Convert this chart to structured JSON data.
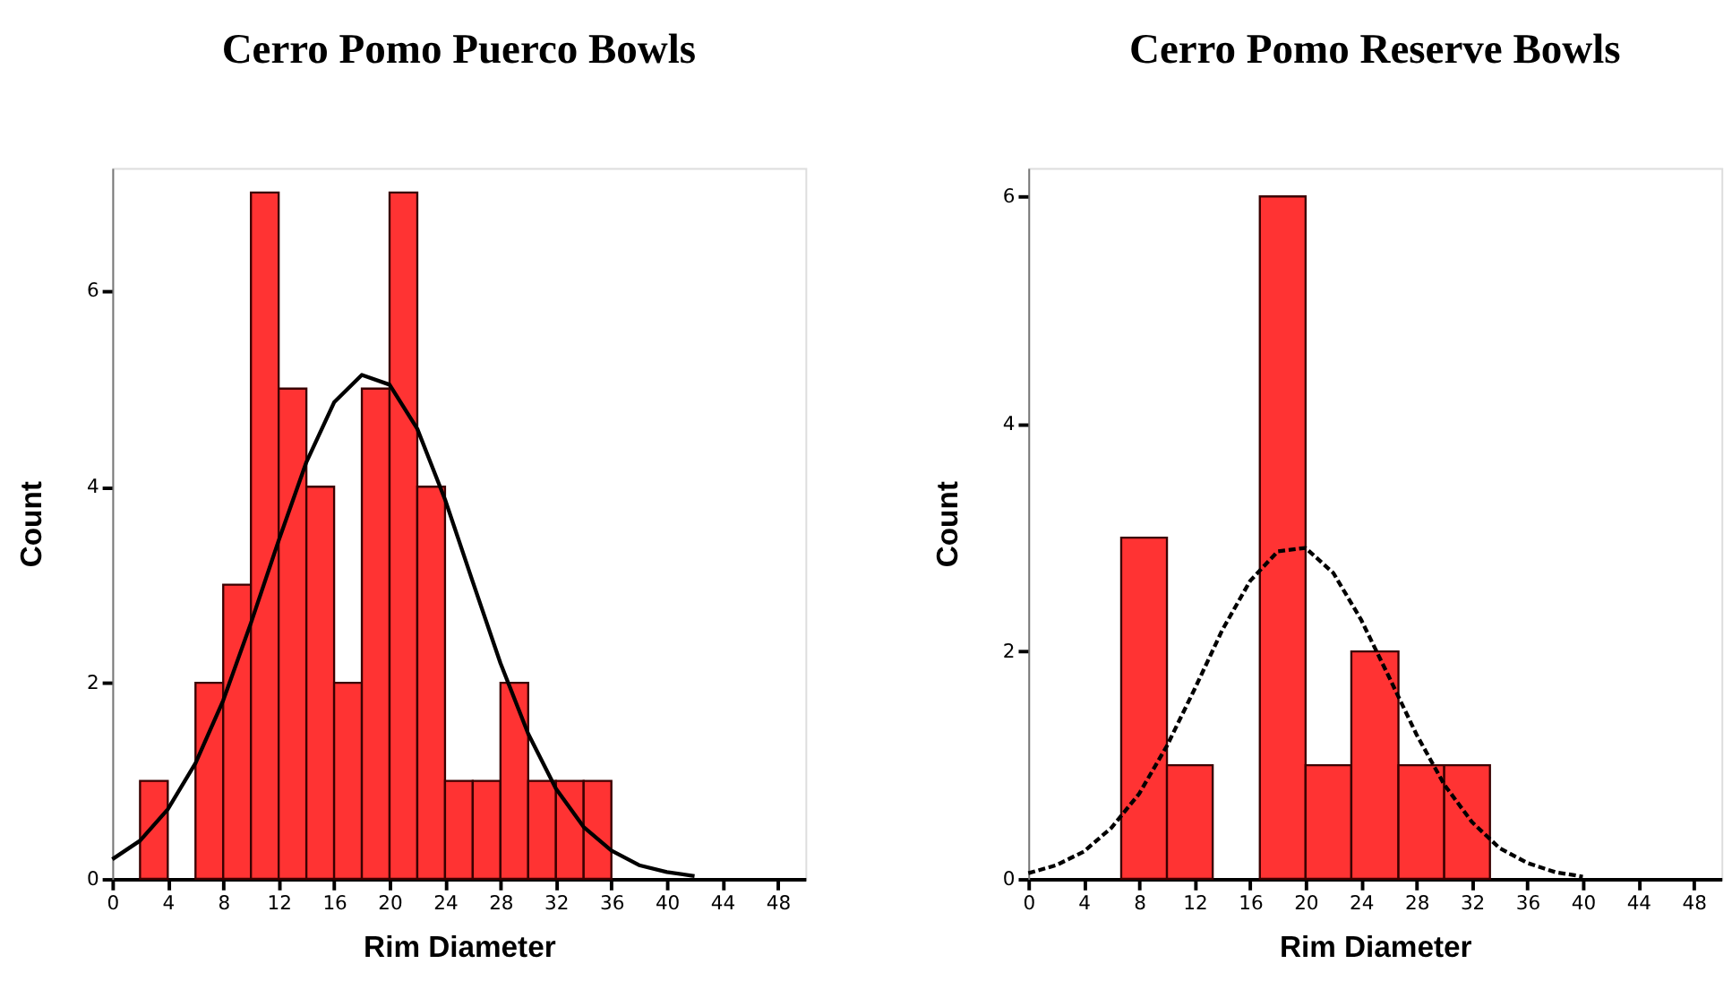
{
  "chart_data": [
    {
      "type": "histogram",
      "title": "Cerro Pomo Puerco Bowls",
      "xlabel": "Rim Diameter",
      "ylabel": "Count",
      "color": "#ff3333",
      "bins": [
        2,
        4,
        6,
        8,
        10,
        12,
        14,
        16,
        18,
        20,
        22,
        24,
        26,
        28,
        30,
        32,
        34,
        36
      ],
      "values": [
        1,
        0,
        2,
        3,
        7,
        5,
        4,
        2,
        5,
        7,
        4,
        1,
        1,
        2,
        1,
        1,
        1
      ],
      "series": [
        {
          "type": "line",
          "color": "#000000",
          "line_style": "solid",
          "x": [
            0,
            2,
            4,
            6,
            8,
            10,
            12,
            14,
            16,
            18,
            20,
            22,
            24,
            26,
            28,
            30,
            32,
            34,
            36,
            38,
            40,
            42
          ],
          "values": [
            0.2,
            0.39,
            0.71,
            1.18,
            1.82,
            2.61,
            3.45,
            4.25,
            4.86,
            5.14,
            5.04,
            4.59,
            3.87,
            3.03,
            2.2,
            1.48,
            0.92,
            0.53,
            0.29,
            0.14,
            0.07,
            0.03
          ]
        }
      ],
      "xlim": [
        0,
        50
      ],
      "xticks": [
        0,
        4,
        8,
        12,
        16,
        20,
        24,
        28,
        32,
        36,
        40,
        44,
        48
      ],
      "ylim": [
        0,
        7.25
      ],
      "yticks": [
        0,
        2,
        4,
        6
      ],
      "grid": false
    },
    {
      "type": "histogram",
      "title": "Cerro Pomo Reserve Bowls",
      "xlabel": "Rim Diameter",
      "ylabel": "Count",
      "color": "#ff3333",
      "bins": [
        6.7,
        10,
        13.3,
        16.7,
        20,
        23.3,
        26.7,
        30,
        33.3
      ],
      "values": [
        3,
        1,
        0,
        6,
        1,
        2,
        1,
        1
      ],
      "series": [
        {
          "type": "line",
          "color": "#000000",
          "line_style": "dashed",
          "x": [
            0,
            2,
            4,
            6,
            8,
            10,
            12,
            14,
            16,
            18,
            20,
            22,
            24,
            26,
            28,
            30,
            32,
            34,
            36,
            38,
            40
          ],
          "values": [
            0.05,
            0.12,
            0.24,
            0.45,
            0.75,
            1.17,
            1.67,
            2.19,
            2.62,
            2.88,
            2.91,
            2.69,
            2.28,
            1.78,
            1.27,
            0.83,
            0.5,
            0.27,
            0.14,
            0.06,
            0.02
          ]
        }
      ],
      "xlim": [
        0,
        50
      ],
      "xticks": [
        0,
        4,
        8,
        12,
        16,
        20,
        24,
        28,
        32,
        36,
        40,
        44,
        48
      ],
      "ylim": [
        0,
        6.25
      ],
      "yticks": [
        0,
        2,
        4,
        6
      ],
      "grid": false
    }
  ]
}
